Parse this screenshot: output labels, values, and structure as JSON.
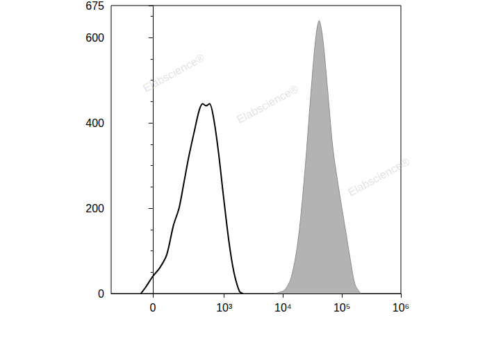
{
  "chart_data": {
    "type": "line",
    "watermark": "Elabscience®",
    "xlim": [
      -300,
      1000000
    ],
    "xticks": [
      0,
      {
        "value": 1000,
        "label": "10³"
      },
      {
        "value": 10000,
        "label": "10⁴"
      },
      {
        "value": 100000,
        "label": "10⁵"
      },
      {
        "value": 1000000,
        "label": "10⁶"
      }
    ],
    "ylim": [
      0,
      675
    ],
    "yticks": [
      0,
      200,
      400,
      600
    ],
    "grid": false,
    "series": [
      {
        "color": "#000000",
        "line_style": "solid",
        "x": [
          -59,
          -34,
          0,
          34,
          70,
          111,
          150,
          190,
          236,
          300,
          369,
          424,
          488,
          560,
          660,
          800,
          968,
          1209,
          1464,
          1820,
          2080
        ],
        "values": [
          0,
          15,
          40,
          60,
          90,
          160,
          200,
          260,
          320,
          380,
          430,
          445,
          440,
          445,
          410,
          330,
          230,
          120,
          50,
          5,
          0
        ]
      },
      {
        "color": "#b3b3b3",
        "line_style": "filled",
        "x": [
          7040,
          10600,
          13900,
          18200,
          23900,
          29700,
          35900,
          41000,
          47100,
          57000,
          70300,
          92000,
          114600,
          138600,
          167700,
          209000
        ],
        "values": [
          0,
          8,
          40,
          130,
          300,
          470,
          600,
          640,
          600,
          480,
          340,
          230,
          150,
          80,
          20,
          0
        ]
      }
    ]
  }
}
